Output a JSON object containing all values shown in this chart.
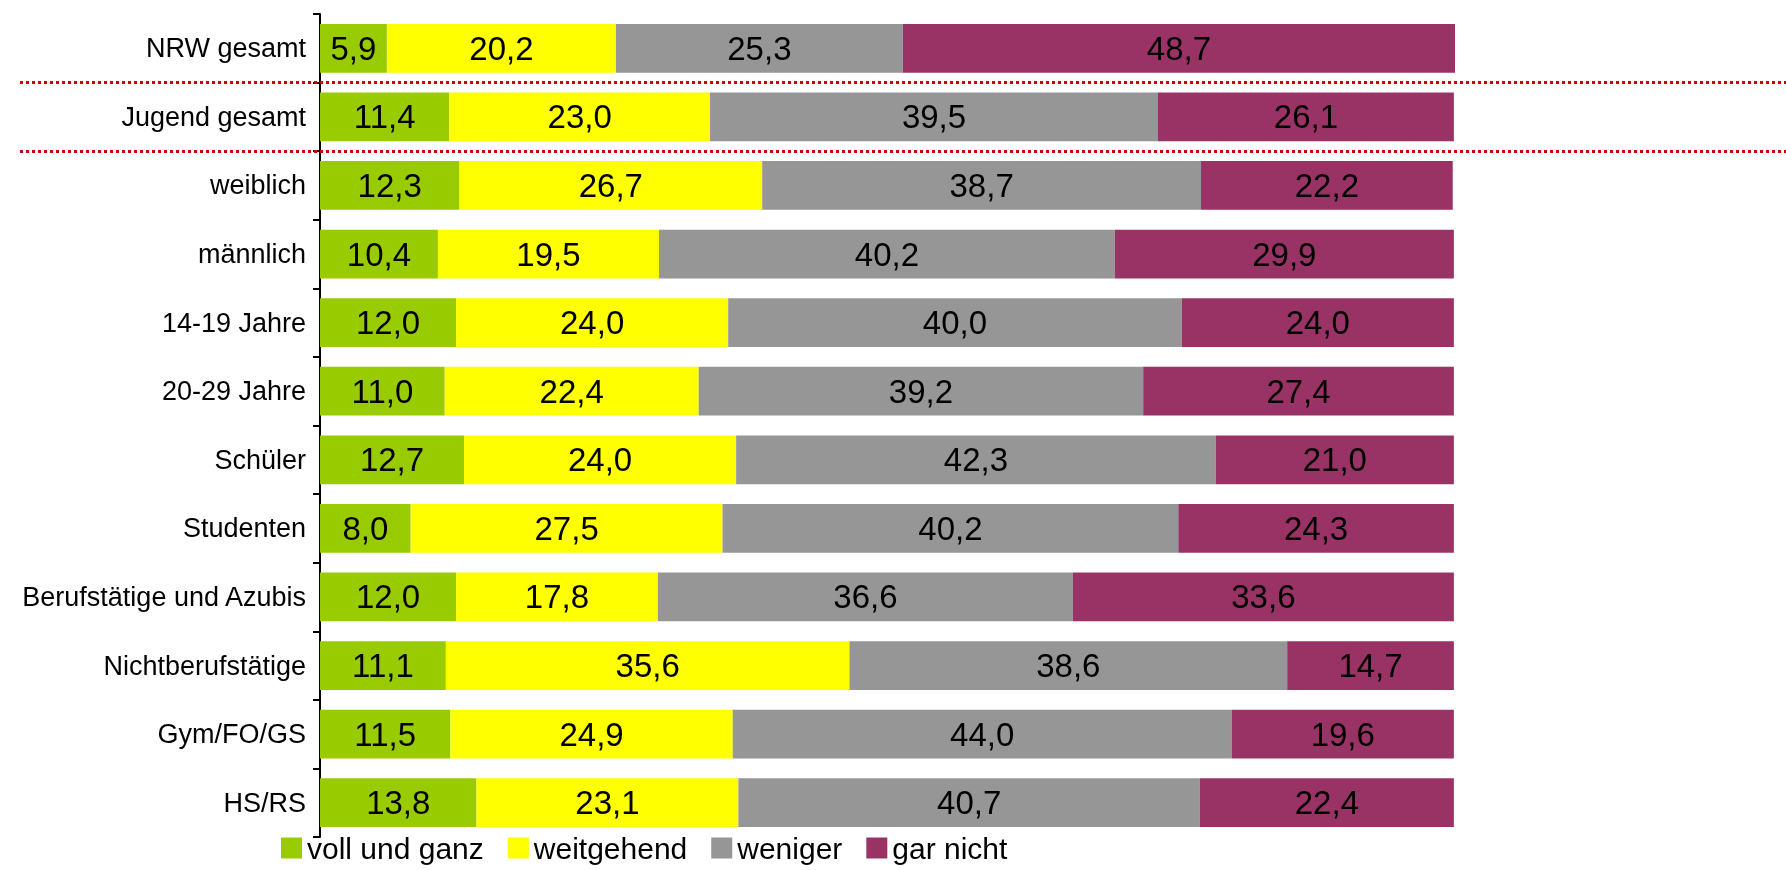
{
  "chart_data": {
    "type": "bar",
    "orientation": "horizontal",
    "stacked": true,
    "categories": [
      "NRW gesamt",
      "Jugend gesamt",
      "weiblich",
      "männlich",
      "14-19 Jahre",
      "20-29 Jahre",
      "Schüler",
      "Studenten",
      "Berufstätige und Azubis",
      "Nichtberufstätige",
      "Gym/FO/GS",
      "HS/RS"
    ],
    "series": [
      {
        "name": "voll und ganz",
        "color": "#99cc00",
        "values": [
          5.9,
          11.4,
          12.3,
          10.4,
          12.0,
          11.0,
          12.7,
          8.0,
          12.0,
          11.1,
          11.5,
          13.8
        ],
        "value_labels": [
          "5,9",
          "11,4",
          "12,3",
          "10,4",
          "12,0",
          "11,0",
          "12,7",
          "8,0",
          "12,0",
          "11,1",
          "11,5",
          "13,8"
        ]
      },
      {
        "name": "weitgehend",
        "color": "#ffff00",
        "values": [
          20.2,
          23.0,
          26.7,
          19.5,
          24.0,
          22.4,
          24.0,
          27.5,
          17.8,
          35.6,
          24.9,
          23.1
        ],
        "value_labels": [
          "20,2",
          "23,0",
          "26,7",
          "19,5",
          "24,0",
          "22,4",
          "24,0",
          "27,5",
          "17,8",
          "35,6",
          "24,9",
          "23,1"
        ]
      },
      {
        "name": "weniger",
        "color": "#969696",
        "values": [
          25.3,
          39.5,
          38.7,
          40.2,
          40.0,
          39.2,
          42.3,
          40.2,
          36.6,
          38.6,
          44.0,
          40.7
        ],
        "value_labels": [
          "25,3",
          "39,5",
          "38,7",
          "40,2",
          "40,0",
          "39,2",
          "42,3",
          "40,2",
          "36,6",
          "38,6",
          "44,0",
          "40,7"
        ]
      },
      {
        "name": "gar nicht",
        "color": "#993366",
        "values": [
          48.7,
          26.1,
          22.2,
          29.9,
          24.0,
          27.4,
          21.0,
          24.3,
          33.6,
          14.7,
          19.6,
          22.4
        ],
        "value_labels": [
          "48,7",
          "26,1",
          "22,2",
          "29,9",
          "24,0",
          "27,4",
          "21,0",
          "24,3",
          "33,6",
          "14,7",
          "19,6",
          "22,4"
        ]
      }
    ],
    "xlim": [
      0,
      100.1
    ],
    "tick_labels": "y",
    "legend": "bottom"
  }
}
